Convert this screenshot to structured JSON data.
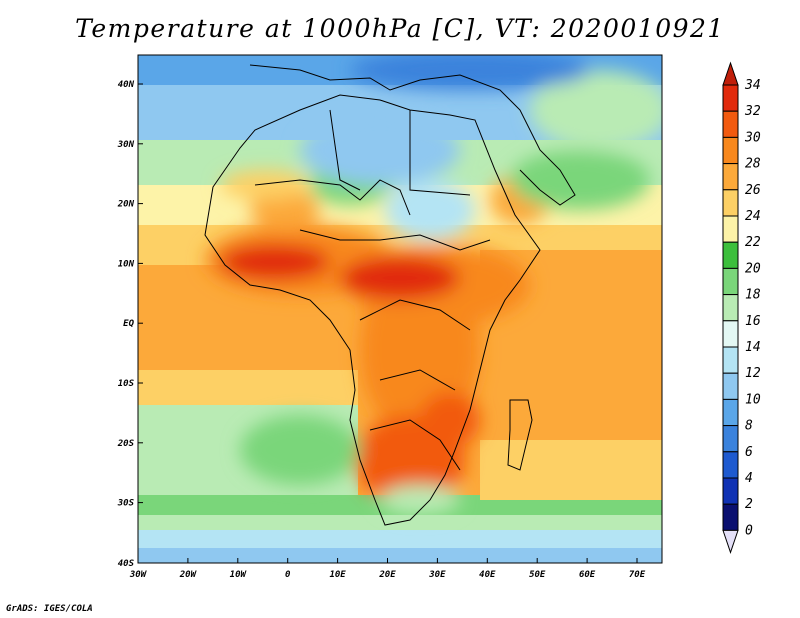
{
  "title": "Temperature at 1000hPa [C], VT: 2020010921",
  "credit": "GrADS: IGES/COLA",
  "lat_labels": [
    "40N",
    "30N",
    "20N",
    "10N",
    "EQ",
    "10S",
    "20S",
    "30S",
    "40S"
  ],
  "lon_labels": [
    "30W",
    "20W",
    "10W",
    "0",
    "10E",
    "20E",
    "30E",
    "40E",
    "50E",
    "60E",
    "70E"
  ],
  "colorbar": {
    "labels": [
      "34",
      "32",
      "30",
      "28",
      "26",
      "24",
      "22",
      "20",
      "18",
      "16",
      "14",
      "12",
      "10",
      "8",
      "6",
      "4",
      "2",
      "0"
    ],
    "colors": [
      "#e12a0c",
      "#f25a0f",
      "#f8881d",
      "#fca93a",
      "#fdd065",
      "#fdf3a8",
      "#3cbf3c",
      "#7ad67a",
      "#b9ebb4",
      "#e4f8f4",
      "#b4e4f4",
      "#8fc8f0",
      "#5aa6e8",
      "#3a82dc",
      "#1e5ad0",
      "#1032b4",
      "#0a1070"
    ]
  }
}
